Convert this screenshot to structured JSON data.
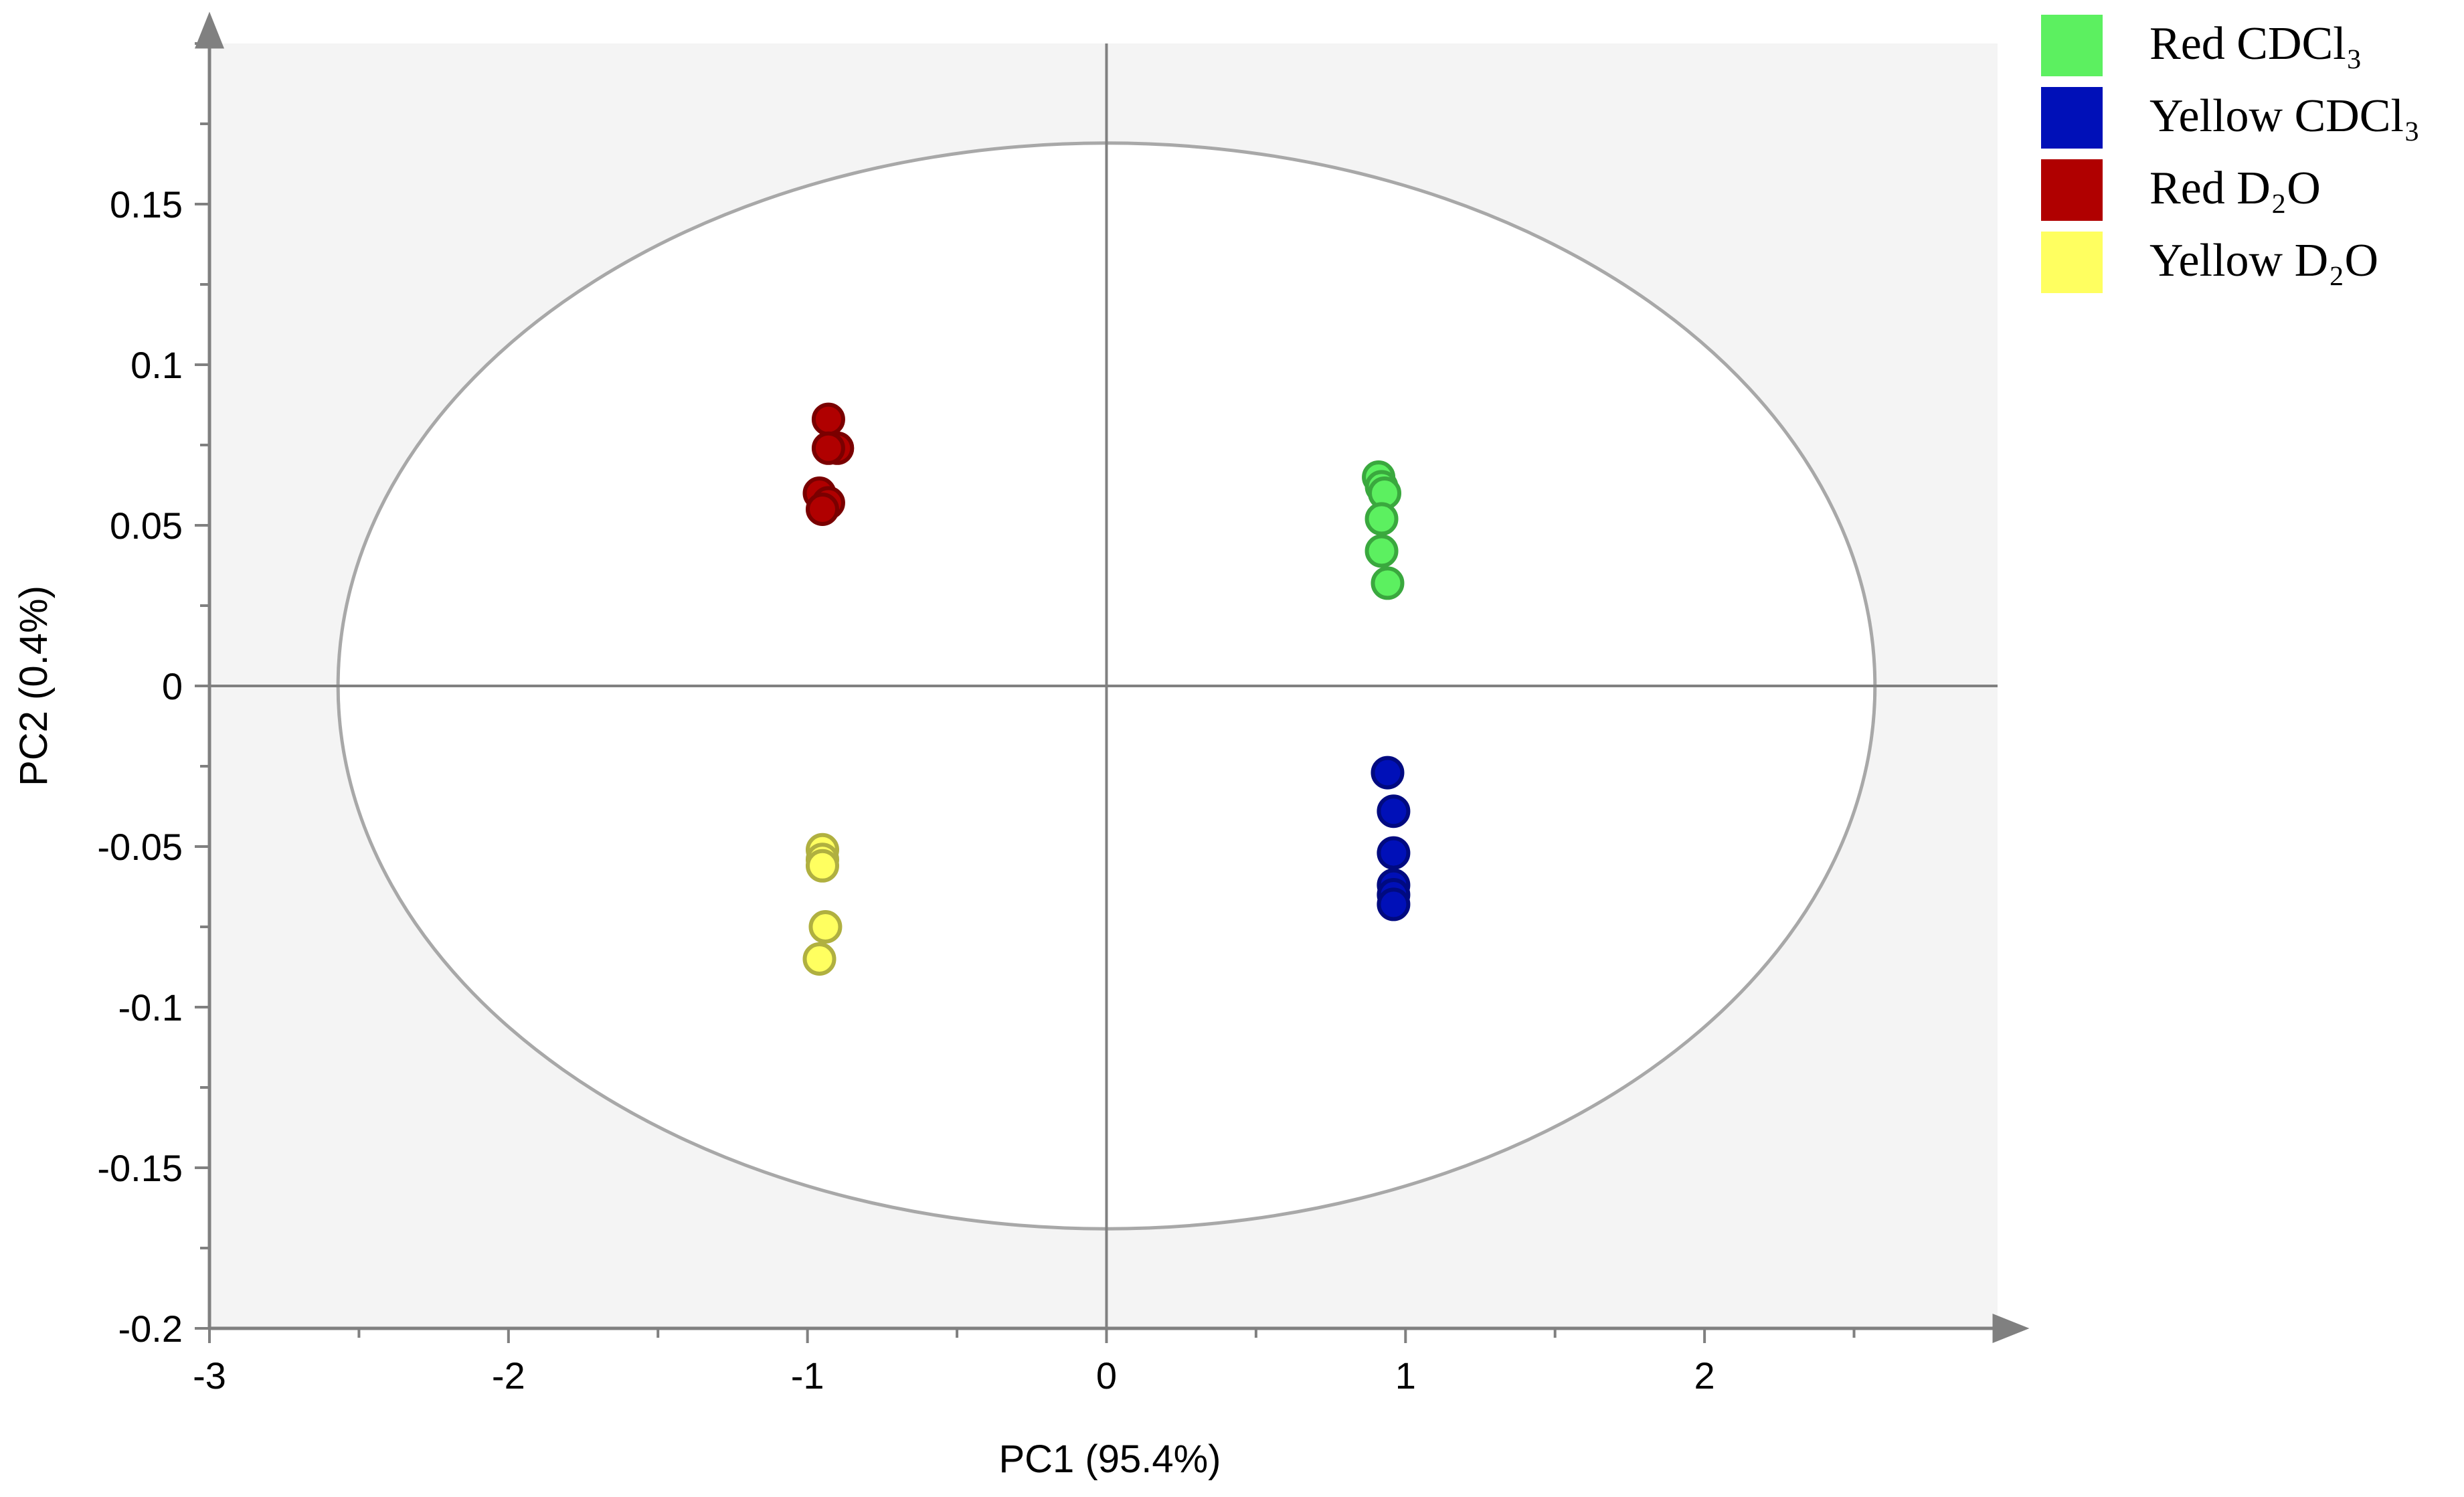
{
  "chart_data": {
    "type": "scatter",
    "xlabel": "PC1 (95.4%)",
    "ylabel": "PC2 (0.4%)",
    "xlim": [
      -3,
      2.98
    ],
    "ylim": [
      -0.2,
      0.2
    ],
    "x_ticks": [
      -3,
      -2,
      -1,
      0,
      1,
      2
    ],
    "x_tick_labels": [
      "-3",
      "-2",
      "-1",
      "0",
      "1",
      "2"
    ],
    "y_ticks": [
      -0.2,
      -0.15,
      -0.1,
      -0.05,
      0,
      0.05,
      0.1,
      0.15
    ],
    "y_tick_labels": [
      "-0.2",
      "-0.15",
      "-0.1",
      "-0.05",
      "0",
      "0.05",
      "0.1",
      "0.15"
    ],
    "x_minor_step": 0.5,
    "y_minor_step": 0.025,
    "grid": false,
    "plot_background": "#f4f4f4",
    "confidence_ellipse": {
      "center": [
        0,
        0
      ],
      "radius_x": 2.57,
      "radius_y": 0.169,
      "fill": "#ffffff",
      "stroke": "#a8a8a8"
    },
    "legend_position": "top-right",
    "series": [
      {
        "name": "Red CDCl₃",
        "color": "#5cf060",
        "stroke": "#3aa83e",
        "points": [
          [
            0.91,
            0.065
          ],
          [
            0.92,
            0.062
          ],
          [
            0.93,
            0.06
          ],
          [
            0.92,
            0.052
          ],
          [
            0.92,
            0.042
          ],
          [
            0.94,
            0.032
          ]
        ]
      },
      {
        "name": "Yellow CDCl₃",
        "color": "#0010b8",
        "stroke": "#000a80",
        "points": [
          [
            0.94,
            -0.027
          ],
          [
            0.96,
            -0.039
          ],
          [
            0.96,
            -0.052
          ],
          [
            0.96,
            -0.062
          ],
          [
            0.96,
            -0.065
          ],
          [
            0.96,
            -0.068
          ]
        ]
      },
      {
        "name": "Red D₂O",
        "color": "#b00000",
        "stroke": "#7a0000",
        "points": [
          [
            -0.93,
            0.083
          ],
          [
            -0.9,
            0.074
          ],
          [
            -0.93,
            0.074
          ],
          [
            -0.96,
            0.06
          ],
          [
            -0.93,
            0.057
          ],
          [
            -0.95,
            0.055
          ]
        ]
      },
      {
        "name": "Yellow D₂O",
        "color": "#ffff60",
        "stroke": "#b0b040",
        "points": [
          [
            -0.95,
            -0.051
          ],
          [
            -0.95,
            -0.054
          ],
          [
            -0.95,
            -0.056
          ],
          [
            -0.94,
            -0.075
          ],
          [
            -0.96,
            -0.085
          ]
        ]
      }
    ]
  }
}
